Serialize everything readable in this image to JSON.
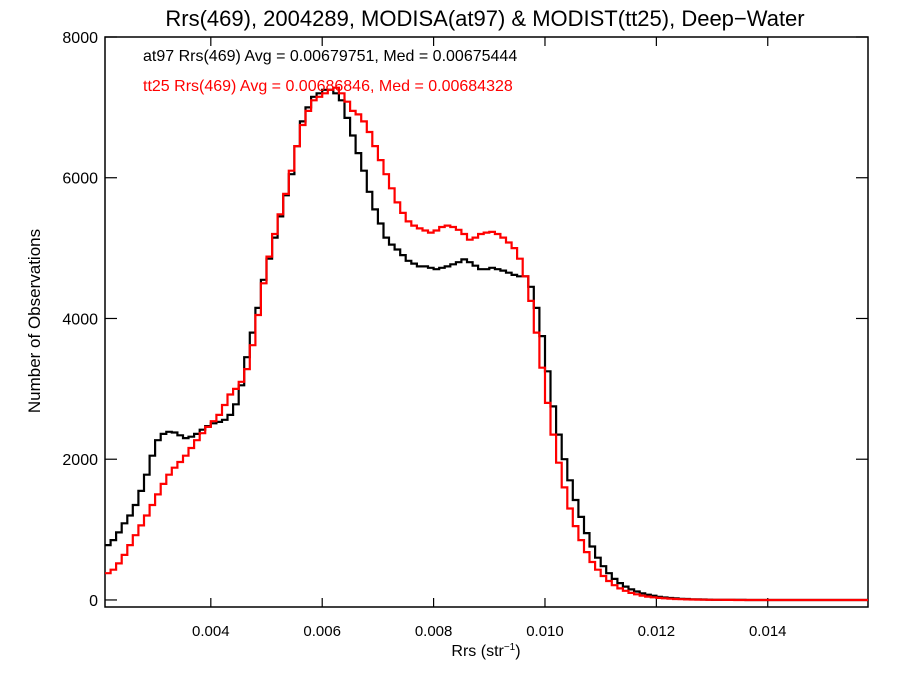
{
  "chart_data": {
    "type": "line",
    "step": true,
    "title": "Rrs(469), 2004289, MODISA(at97) & MODIST(tt25), Deep−Water",
    "xlabel_main": "Rrs (str",
    "xlabel_sup": "−1",
    "xlabel_close": ")",
    "ylabel": "Number of Observations",
    "xlim": [
      0.0021,
      0.0158
    ],
    "ylim": [
      -100,
      8000
    ],
    "x_ticks": [
      {
        "value": 0.004,
        "label": "0.004"
      },
      {
        "value": 0.006,
        "label": "0.006"
      },
      {
        "value": 0.008,
        "label": "0.008"
      },
      {
        "value": 0.01,
        "label": "0.010"
      },
      {
        "value": 0.012,
        "label": "0.012"
      },
      {
        "value": 0.014,
        "label": "0.014"
      }
    ],
    "y_ticks": [
      {
        "value": 0,
        "label": "0"
      },
      {
        "value": 2000,
        "label": "2000"
      },
      {
        "value": 4000,
        "label": "4000"
      },
      {
        "value": 6000,
        "label": "6000"
      },
      {
        "value": 8000,
        "label": "8000"
      }
    ],
    "legend_position": "top-left",
    "series": [
      {
        "name": "at97",
        "color": "#000000",
        "annotation": "at97 Rrs(469) Avg = 0.00679751, Med = 0.00675444",
        "points": [
          [
            0.0021,
            780
          ],
          [
            0.0022,
            850
          ],
          [
            0.0023,
            960
          ],
          [
            0.0024,
            1090
          ],
          [
            0.0025,
            1200
          ],
          [
            0.0026,
            1350
          ],
          [
            0.0027,
            1550
          ],
          [
            0.0028,
            1780
          ],
          [
            0.0029,
            2050
          ],
          [
            0.003,
            2270
          ],
          [
            0.0031,
            2360
          ],
          [
            0.0032,
            2390
          ],
          [
            0.0033,
            2380
          ],
          [
            0.0034,
            2340
          ],
          [
            0.0035,
            2300
          ],
          [
            0.0036,
            2320
          ],
          [
            0.0037,
            2360
          ],
          [
            0.0038,
            2420
          ],
          [
            0.0039,
            2470
          ],
          [
            0.004,
            2510
          ],
          [
            0.0041,
            2530
          ],
          [
            0.0042,
            2560
          ],
          [
            0.0043,
            2630
          ],
          [
            0.0044,
            2780
          ],
          [
            0.0045,
            3050
          ],
          [
            0.0046,
            3450
          ],
          [
            0.0047,
            3800
          ],
          [
            0.0048,
            4150
          ],
          [
            0.0049,
            4550
          ],
          [
            0.005,
            4850
          ],
          [
            0.0051,
            5150
          ],
          [
            0.0052,
            5450
          ],
          [
            0.0053,
            5750
          ],
          [
            0.0054,
            6050
          ],
          [
            0.0055,
            6450
          ],
          [
            0.0056,
            6800
          ],
          [
            0.0057,
            7000
          ],
          [
            0.0058,
            7150
          ],
          [
            0.0059,
            7200
          ],
          [
            0.006,
            7250
          ],
          [
            0.0061,
            7250
          ],
          [
            0.0062,
            7200
          ],
          [
            0.0063,
            7100
          ],
          [
            0.0064,
            6850
          ],
          [
            0.0065,
            6600
          ],
          [
            0.0066,
            6350
          ],
          [
            0.0067,
            6100
          ],
          [
            0.0068,
            5800
          ],
          [
            0.0069,
            5550
          ],
          [
            0.007,
            5350
          ],
          [
            0.0071,
            5150
          ],
          [
            0.0072,
            5050
          ],
          [
            0.0073,
            4980
          ],
          [
            0.0074,
            4900
          ],
          [
            0.0075,
            4820
          ],
          [
            0.0076,
            4780
          ],
          [
            0.0077,
            4740
          ],
          [
            0.0078,
            4740
          ],
          [
            0.0079,
            4720
          ],
          [
            0.008,
            4700
          ],
          [
            0.0081,
            4720
          ],
          [
            0.0082,
            4740
          ],
          [
            0.0083,
            4770
          ],
          [
            0.0084,
            4800
          ],
          [
            0.0085,
            4840
          ],
          [
            0.0086,
            4800
          ],
          [
            0.0087,
            4750
          ],
          [
            0.0088,
            4700
          ],
          [
            0.0089,
            4700
          ],
          [
            0.009,
            4720
          ],
          [
            0.0091,
            4700
          ],
          [
            0.0092,
            4680
          ],
          [
            0.0093,
            4650
          ],
          [
            0.0094,
            4620
          ],
          [
            0.0095,
            4600
          ],
          [
            0.0096,
            4600
          ],
          [
            0.0097,
            4450
          ],
          [
            0.0098,
            4150
          ],
          [
            0.0099,
            3750
          ],
          [
            0.01,
            3250
          ],
          [
            0.0101,
            2750
          ],
          [
            0.0102,
            2350
          ],
          [
            0.0103,
            2000
          ],
          [
            0.0104,
            1700
          ],
          [
            0.0105,
            1420
          ],
          [
            0.0106,
            1180
          ],
          [
            0.0107,
            950
          ],
          [
            0.0108,
            760
          ],
          [
            0.0109,
            600
          ],
          [
            0.011,
            480
          ],
          [
            0.0111,
            380
          ],
          [
            0.0112,
            300
          ],
          [
            0.0113,
            240
          ],
          [
            0.0114,
            190
          ],
          [
            0.0115,
            150
          ],
          [
            0.0116,
            120
          ],
          [
            0.0117,
            95
          ],
          [
            0.0118,
            75
          ],
          [
            0.0119,
            60
          ],
          [
            0.012,
            45
          ],
          [
            0.0121,
            35
          ],
          [
            0.0122,
            28
          ],
          [
            0.0123,
            22
          ],
          [
            0.0124,
            17
          ],
          [
            0.0125,
            13
          ],
          [
            0.0126,
            10
          ],
          [
            0.0127,
            8
          ],
          [
            0.0128,
            6
          ],
          [
            0.0129,
            4
          ],
          [
            0.013,
            3
          ],
          [
            0.0132,
            2
          ],
          [
            0.0134,
            1
          ],
          [
            0.0136,
            0
          ],
          [
            0.0158,
            0
          ]
        ]
      },
      {
        "name": "tt25",
        "color": "#ff0000",
        "annotation": "tt25 Rrs(469) Avg = 0.00686846, Med = 0.00684328",
        "points": [
          [
            0.0021,
            380
          ],
          [
            0.0022,
            430
          ],
          [
            0.0023,
            520
          ],
          [
            0.0024,
            640
          ],
          [
            0.0025,
            780
          ],
          [
            0.0026,
            920
          ],
          [
            0.0027,
            1060
          ],
          [
            0.0028,
            1200
          ],
          [
            0.0029,
            1350
          ],
          [
            0.003,
            1500
          ],
          [
            0.0031,
            1650
          ],
          [
            0.0032,
            1780
          ],
          [
            0.0033,
            1880
          ],
          [
            0.0034,
            1960
          ],
          [
            0.0035,
            2050
          ],
          [
            0.0036,
            2160
          ],
          [
            0.0037,
            2270
          ],
          [
            0.0038,
            2370
          ],
          [
            0.0039,
            2460
          ],
          [
            0.004,
            2540
          ],
          [
            0.0041,
            2630
          ],
          [
            0.0042,
            2770
          ],
          [
            0.0043,
            2920
          ],
          [
            0.0044,
            3000
          ],
          [
            0.0045,
            3100
          ],
          [
            0.0046,
            3280
          ],
          [
            0.0047,
            3620
          ],
          [
            0.0048,
            4050
          ],
          [
            0.0049,
            4500
          ],
          [
            0.005,
            4880
          ],
          [
            0.0051,
            5200
          ],
          [
            0.0052,
            5480
          ],
          [
            0.0053,
            5770
          ],
          [
            0.0054,
            6100
          ],
          [
            0.0055,
            6450
          ],
          [
            0.0056,
            6750
          ],
          [
            0.0057,
            6950
          ],
          [
            0.0058,
            7100
          ],
          [
            0.0059,
            7150
          ],
          [
            0.006,
            7200
          ],
          [
            0.0061,
            7250
          ],
          [
            0.0062,
            7280
          ],
          [
            0.0063,
            7200
          ],
          [
            0.0064,
            7080
          ],
          [
            0.0065,
            6950
          ],
          [
            0.0066,
            6900
          ],
          [
            0.0067,
            6800
          ],
          [
            0.0068,
            6650
          ],
          [
            0.0069,
            6450
          ],
          [
            0.007,
            6250
          ],
          [
            0.0071,
            6050
          ],
          [
            0.0072,
            5850
          ],
          [
            0.0073,
            5650
          ],
          [
            0.0074,
            5500
          ],
          [
            0.0075,
            5380
          ],
          [
            0.0076,
            5320
          ],
          [
            0.0077,
            5280
          ],
          [
            0.0078,
            5250
          ],
          [
            0.0079,
            5220
          ],
          [
            0.008,
            5250
          ],
          [
            0.0081,
            5300
          ],
          [
            0.0082,
            5320
          ],
          [
            0.0083,
            5300
          ],
          [
            0.0084,
            5260
          ],
          [
            0.0085,
            5200
          ],
          [
            0.0086,
            5120
          ],
          [
            0.0087,
            5150
          ],
          [
            0.0088,
            5200
          ],
          [
            0.0089,
            5220
          ],
          [
            0.009,
            5230
          ],
          [
            0.0091,
            5200
          ],
          [
            0.0092,
            5150
          ],
          [
            0.0093,
            5080
          ],
          [
            0.0094,
            5000
          ],
          [
            0.0095,
            4850
          ],
          [
            0.0096,
            4600
          ],
          [
            0.0097,
            4250
          ],
          [
            0.0098,
            3800
          ],
          [
            0.0099,
            3300
          ],
          [
            0.01,
            2800
          ],
          [
            0.0101,
            2350
          ],
          [
            0.0102,
            1950
          ],
          [
            0.0103,
            1600
          ],
          [
            0.0104,
            1300
          ],
          [
            0.0105,
            1050
          ],
          [
            0.0106,
            850
          ],
          [
            0.0107,
            680
          ],
          [
            0.0108,
            540
          ],
          [
            0.0109,
            430
          ],
          [
            0.011,
            340
          ],
          [
            0.0111,
            270
          ],
          [
            0.0112,
            210
          ],
          [
            0.0113,
            165
          ],
          [
            0.0114,
            130
          ],
          [
            0.0115,
            100
          ],
          [
            0.0116,
            80
          ],
          [
            0.0117,
            62
          ],
          [
            0.0118,
            48
          ],
          [
            0.0119,
            38
          ],
          [
            0.012,
            30
          ],
          [
            0.0121,
            23
          ],
          [
            0.0122,
            18
          ],
          [
            0.0123,
            14
          ],
          [
            0.0124,
            11
          ],
          [
            0.0125,
            8
          ],
          [
            0.0126,
            6
          ],
          [
            0.0127,
            5
          ],
          [
            0.0128,
            4
          ],
          [
            0.0129,
            3
          ],
          [
            0.013,
            2
          ],
          [
            0.0132,
            1
          ],
          [
            0.0134,
            0
          ],
          [
            0.0158,
            0
          ]
        ]
      }
    ]
  }
}
